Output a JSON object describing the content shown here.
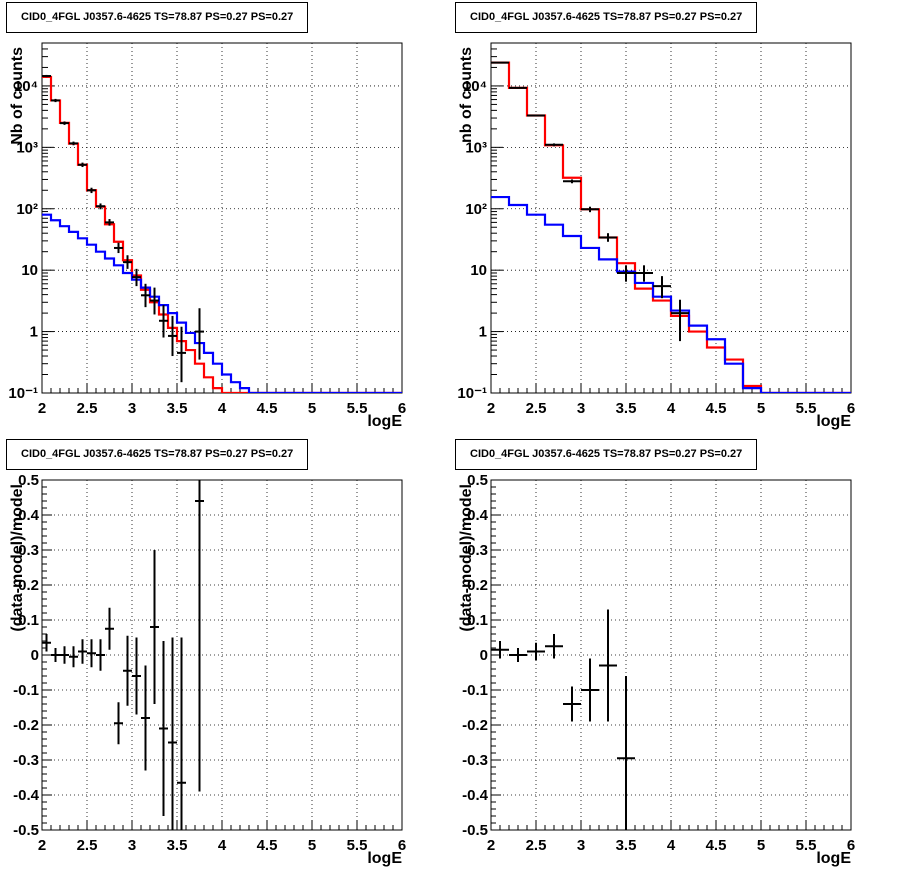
{
  "chart_data": [
    {
      "type": "line",
      "title": "CID0_4FGL J0357.6-4625 TS=78.87 PS=0.27 PS=0.27",
      "xlabel": "logE",
      "ylabel": "Nb of counts",
      "xlim": [
        2,
        6
      ],
      "ylim": [
        0.1,
        50000
      ],
      "yscale": "log",
      "grid": true,
      "x_ticks": [
        "2",
        "2.5",
        "3",
        "3.5",
        "4",
        "4.5",
        "5",
        "5.5",
        "6"
      ],
      "y_ticks": [
        {
          "value": 0.1,
          "label": "10⁻¹"
        },
        {
          "value": 1,
          "label": "1"
        },
        {
          "value": 10,
          "label": "10"
        },
        {
          "value": 100,
          "label": "10²"
        },
        {
          "value": 1000,
          "label": "10³"
        },
        {
          "value": 10000,
          "label": "10⁴"
        }
      ],
      "bin_edges": [
        2.0,
        2.1,
        2.2,
        2.3,
        2.4,
        2.5,
        2.6,
        2.7,
        2.8,
        2.9,
        3.0,
        3.1,
        3.2,
        3.3,
        3.4,
        3.5,
        3.6,
        3.7,
        3.8,
        3.9,
        4.0,
        4.1,
        4.2,
        4.3,
        4.4,
        4.5,
        4.6,
        4.7,
        4.8,
        4.9,
        5.0,
        5.1,
        5.2,
        5.3,
        5.4,
        5.5,
        5.6,
        5.7,
        5.8,
        5.9,
        6.0
      ],
      "series": [
        {
          "style": "step",
          "color": "#ff0000",
          "values": [
            14000,
            5800,
            2500,
            1150,
            520,
            200,
            108,
            56,
            29,
            14.5,
            8.2,
            4.8,
            3.0,
            1.9,
            1.15,
            0.7,
            0.5,
            0.3,
            0.18,
            0.12,
            0.1,
            0.1,
            0.1,
            0.1,
            0.1,
            0.1,
            0.1,
            0.1,
            0.1,
            0.1,
            0.1,
            0.1,
            0.1,
            0.1,
            0.1,
            0.1,
            0.1,
            0.1,
            0.1,
            0.1
          ]
        },
        {
          "style": "step",
          "color": "#0000ff",
          "values": [
            80,
            65,
            52,
            42,
            33,
            26,
            20,
            15.5,
            12,
            9,
            7,
            5.2,
            3.7,
            2.7,
            2.0,
            1.4,
            0.95,
            0.65,
            0.45,
            0.3,
            0.2,
            0.15,
            0.12,
            0.1,
            0.1,
            0.1,
            0.1,
            0.1,
            0.1,
            0.1,
            0.1,
            0.1,
            0.1,
            0.1,
            0.1,
            0.1,
            0.1,
            0.1,
            0.1,
            0.1
          ]
        },
        {
          "style": "errorbar",
          "color": "#000000",
          "points": [
            {
              "x": 2.05,
              "y": 14500,
              "ylo": 13900,
              "yhi": 15100
            },
            {
              "x": 2.15,
              "y": 5800,
              "ylo": 5450,
              "yhi": 6150
            },
            {
              "x": 2.25,
              "y": 2480,
              "ylo": 2320,
              "yhi": 2640
            },
            {
              "x": 2.35,
              "y": 1160,
              "ylo": 1080,
              "yhi": 1240
            },
            {
              "x": 2.45,
              "y": 520,
              "ylo": 478,
              "yhi": 564
            },
            {
              "x": 2.55,
              "y": 200,
              "ylo": 180,
              "yhi": 220
            },
            {
              "x": 2.65,
              "y": 110,
              "ylo": 98,
              "yhi": 122
            },
            {
              "x": 2.75,
              "y": 60,
              "ylo": 53,
              "yhi": 68
            },
            {
              "x": 2.85,
              "y": 23,
              "ylo": 19,
              "yhi": 28
            },
            {
              "x": 2.95,
              "y": 13.5,
              "ylo": 10.5,
              "yhi": 17.5
            },
            {
              "x": 3.05,
              "y": 7.7,
              "ylo": 5.5,
              "yhi": 10.5
            },
            {
              "x": 3.15,
              "y": 3.9,
              "ylo": 2.5,
              "yhi": 6.0
            },
            {
              "x": 3.25,
              "y": 3.2,
              "ylo": 1.9,
              "yhi": 5.2
            },
            {
              "x": 3.35,
              "y": 1.5,
              "ylo": 0.8,
              "yhi": 2.7
            },
            {
              "x": 3.45,
              "y": 0.85,
              "ylo": 0.4,
              "yhi": 1.8
            },
            {
              "x": 3.55,
              "y": 0.45,
              "ylo": 0.15,
              "yhi": 1.2
            },
            {
              "x": 3.75,
              "y": 1.0,
              "ylo": 0.35,
              "yhi": 2.4
            }
          ]
        }
      ]
    },
    {
      "type": "line",
      "title": "CID0_4FGL J0357.6-4625 TS=78.87 PS=0.27 PS=0.27",
      "xlabel": "logE",
      "ylabel": "nb of counts",
      "xlim": [
        2,
        6
      ],
      "ylim": [
        0.1,
        50000
      ],
      "yscale": "log",
      "grid": true,
      "x_ticks": [
        "2",
        "2.5",
        "3",
        "3.5",
        "4",
        "4.5",
        "5",
        "5.5",
        "6"
      ],
      "y_ticks": [
        {
          "value": 0.1,
          "label": "10⁻¹"
        },
        {
          "value": 1,
          "label": "1"
        },
        {
          "value": 10,
          "label": "10"
        },
        {
          "value": 100,
          "label": "10²"
        },
        {
          "value": 1000,
          "label": "10³"
        },
        {
          "value": 10000,
          "label": "10⁴"
        }
      ],
      "bin_edges": [
        2.0,
        2.2,
        2.4,
        2.6,
        2.8,
        3.0,
        3.2,
        3.4,
        3.6,
        3.8,
        4.0,
        4.2,
        4.4,
        4.6,
        4.8,
        5.0,
        5.2,
        5.4,
        5.6,
        5.8,
        6.0
      ],
      "series": [
        {
          "style": "step",
          "color": "#ff0000",
          "values": [
            24000,
            9300,
            3300,
            1080,
            320,
            98,
            34,
            13,
            5,
            3.2,
            1.8,
            1.0,
            0.55,
            0.35,
            0.13,
            0.1,
            0.1,
            0.1,
            0.1,
            0.1
          ]
        },
        {
          "style": "step",
          "color": "#0000ff",
          "values": [
            155,
            115,
            80,
            55,
            36,
            23,
            15,
            9.5,
            6.2,
            3.7,
            2.2,
            1.25,
            0.75,
            0.3,
            0.12,
            0.1,
            0.1,
            0.1,
            0.1,
            0.1
          ]
        },
        {
          "style": "errorbar",
          "color": "#000000",
          "points": [
            {
              "x": 2.1,
              "y": 24000,
              "ylo": 23600,
              "yhi": 24400
            },
            {
              "x": 2.3,
              "y": 9300,
              "ylo": 9050,
              "yhi": 9550
            },
            {
              "x": 2.5,
              "y": 3300,
              "ylo": 3180,
              "yhi": 3420
            },
            {
              "x": 2.7,
              "y": 1100,
              "ylo": 1040,
              "yhi": 1160
            },
            {
              "x": 2.9,
              "y": 280,
              "ylo": 260,
              "yhi": 300
            },
            {
              "x": 3.1,
              "y": 98,
              "ylo": 88,
              "yhi": 108
            },
            {
              "x": 3.3,
              "y": 34,
              "ylo": 29,
              "yhi": 40
            },
            {
              "x": 3.5,
              "y": 9,
              "ylo": 6.5,
              "yhi": 12
            },
            {
              "x": 3.7,
              "y": 9,
              "ylo": 6.5,
              "yhi": 12
            },
            {
              "x": 3.9,
              "y": 5.5,
              "ylo": 3.5,
              "yhi": 8
            },
            {
              "x": 4.1,
              "y": 2,
              "ylo": 0.7,
              "yhi": 3.3
            }
          ]
        }
      ]
    },
    {
      "type": "scatter",
      "title": "CID0_4FGL J0357.6-4625 TS=78.87 PS=0.27 PS=0.27",
      "xlabel": "logE",
      "ylabel": "(data-model)/model",
      "xlim": [
        2,
        6
      ],
      "ylim": [
        -0.5,
        0.5
      ],
      "grid": true,
      "x_ticks": [
        "2",
        "2.5",
        "3",
        "3.5",
        "4",
        "4.5",
        "5",
        "5.5",
        "6"
      ],
      "y_ticks": [
        "-0.5",
        "-0.4",
        "-0.3",
        "-0.2",
        "-0.1",
        "0",
        "0.1",
        "0.2",
        "0.3",
        "0.4",
        "0.5"
      ],
      "series": [
        {
          "style": "errorbar",
          "color": "#000000",
          "points": [
            {
              "x": 2.05,
              "y": 0.035,
              "ylo": 0.01,
              "yhi": 0.06
            },
            {
              "x": 2.15,
              "y": 0.0,
              "ylo": -0.02,
              "yhi": 0.02
            },
            {
              "x": 2.25,
              "y": 0.0,
              "ylo": -0.025,
              "yhi": 0.025
            },
            {
              "x": 2.35,
              "y": -0.005,
              "ylo": -0.035,
              "yhi": 0.025
            },
            {
              "x": 2.45,
              "y": 0.01,
              "ylo": -0.025,
              "yhi": 0.045
            },
            {
              "x": 2.55,
              "y": 0.005,
              "ylo": -0.035,
              "yhi": 0.045
            },
            {
              "x": 2.65,
              "y": 0.0,
              "ylo": -0.045,
              "yhi": 0.045
            },
            {
              "x": 2.75,
              "y": 0.075,
              "ylo": 0.015,
              "yhi": 0.135
            },
            {
              "x": 2.85,
              "y": -0.195,
              "ylo": -0.255,
              "yhi": -0.135
            },
            {
              "x": 2.95,
              "y": -0.045,
              "ylo": -0.145,
              "yhi": 0.055
            },
            {
              "x": 3.05,
              "y": -0.06,
              "ylo": -0.17,
              "yhi": 0.05
            },
            {
              "x": 3.15,
              "y": -0.18,
              "ylo": -0.33,
              "yhi": -0.03
            },
            {
              "x": 3.25,
              "y": 0.08,
              "ylo": -0.14,
              "yhi": 0.3
            },
            {
              "x": 3.35,
              "y": -0.21,
              "ylo": -0.46,
              "yhi": 0.04
            },
            {
              "x": 3.45,
              "y": -0.25,
              "ylo": -0.5,
              "yhi": 0.05
            },
            {
              "x": 3.55,
              "y": -0.365,
              "ylo": -0.5,
              "yhi": 0.05
            },
            {
              "x": 3.75,
              "y": 0.44,
              "ylo": -0.39,
              "yhi": 0.5
            }
          ]
        }
      ]
    },
    {
      "type": "scatter",
      "title": "CID0_4FGL J0357.6-4625 TS=78.87 PS=0.27 PS=0.27",
      "xlabel": "logE",
      "ylabel": "(data-model)/model",
      "xlim": [
        2,
        6
      ],
      "ylim": [
        -0.5,
        0.5
      ],
      "grid": true,
      "x_ticks": [
        "2",
        "2.5",
        "3",
        "3.5",
        "4",
        "4.5",
        "5",
        "5.5",
        "6"
      ],
      "y_ticks": [
        "-0.5",
        "-0.4",
        "-0.3",
        "-0.2",
        "-0.1",
        "0",
        "0.1",
        "0.2",
        "0.3",
        "0.4",
        "0.5"
      ],
      "series": [
        {
          "style": "errorbar",
          "color": "#000000",
          "points": [
            {
              "x": 2.1,
              "y": 0.015,
              "ylo": -0.01,
              "yhi": 0.04
            },
            {
              "x": 2.3,
              "y": 0.0,
              "ylo": -0.02,
              "yhi": 0.02
            },
            {
              "x": 2.5,
              "y": 0.01,
              "ylo": -0.015,
              "yhi": 0.035
            },
            {
              "x": 2.7,
              "y": 0.025,
              "ylo": -0.01,
              "yhi": 0.06
            },
            {
              "x": 2.9,
              "y": -0.14,
              "ylo": -0.19,
              "yhi": -0.09
            },
            {
              "x": 3.1,
              "y": -0.1,
              "ylo": -0.19,
              "yhi": -0.01
            },
            {
              "x": 3.3,
              "y": -0.03,
              "ylo": -0.19,
              "yhi": 0.13
            },
            {
              "x": 3.5,
              "y": -0.295,
              "ylo": -0.5,
              "yhi": -0.06
            }
          ]
        }
      ]
    }
  ]
}
